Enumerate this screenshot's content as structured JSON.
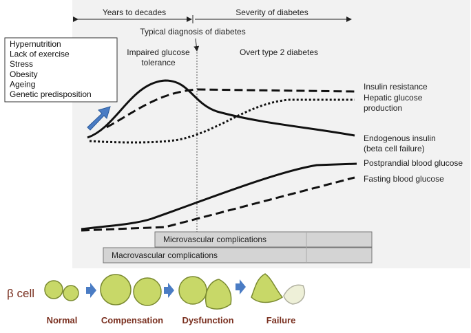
{
  "timeline": {
    "left_span": "Years to decades",
    "right_span": "Severity of diabetes",
    "diagnosis": "Typical diagnosis of diabetes"
  },
  "phases": {
    "igt": [
      "Impaired glucose",
      "tolerance"
    ],
    "overt": "Overt type 2 diabetes"
  },
  "risk_factors": [
    "Hypernutrition",
    "Lack of  exercise",
    "Stress",
    "Obesity",
    "Ageing",
    "Genetic predisposition"
  ],
  "curves": {
    "insulin_resistance": [
      "Insulin resistance"
    ],
    "hepatic": [
      "Hepatic glucose",
      "production"
    ],
    "insulin": [
      "Endogenous insulin",
      "(beta cell failure)"
    ],
    "postprandial": [
      "Postprandial blood glucose"
    ],
    "fasting": [
      "Fasting blood glucose"
    ]
  },
  "complications": {
    "micro": "Microvascular complications",
    "macro": "Macrovascular complications"
  },
  "beta_cell": {
    "label": "β cell",
    "stages": [
      "Normal",
      "Compensation",
      "Dysfunction",
      "Failure"
    ]
  }
}
